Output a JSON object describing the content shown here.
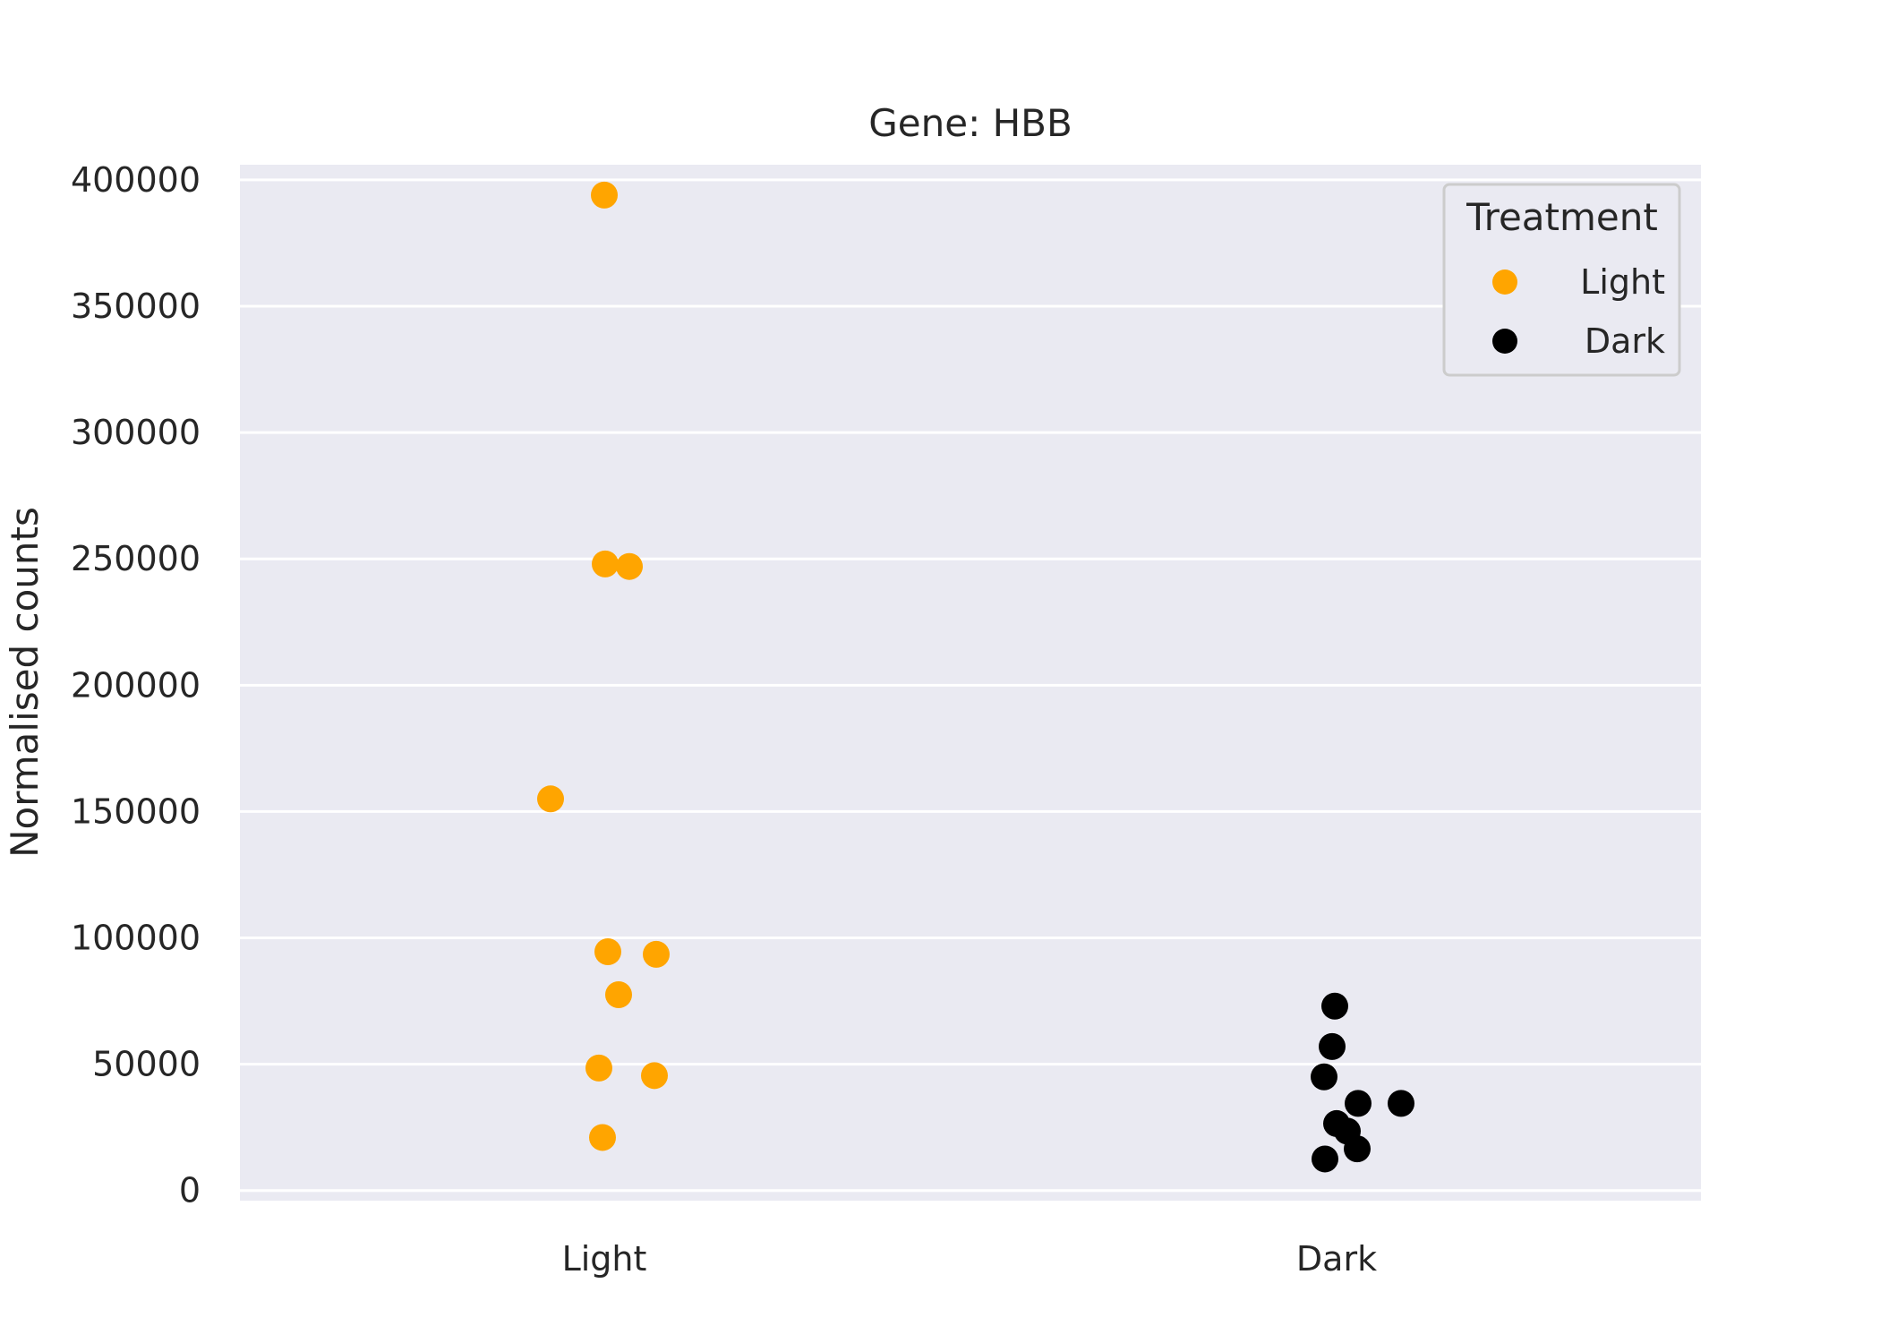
{
  "chart_data": {
    "type": "scatter",
    "title": "Gene: HBB",
    "xlabel": "",
    "ylabel": "Normalised counts",
    "categories": [
      "Light",
      "Dark"
    ],
    "ylim": [
      -4000,
      406000
    ],
    "yticks": [
      0,
      50000,
      100000,
      150000,
      200000,
      250000,
      300000,
      350000,
      400000
    ],
    "grid": true,
    "legend": {
      "title": "Treatment",
      "placement": "top-right"
    },
    "colors": {
      "plot_background": "#eaeaf2",
      "grid": "#ffffff",
      "Light": "#ffa500",
      "Dark": "#000000"
    },
    "series": [
      {
        "name": "Light",
        "category": "Light",
        "color": "#ffa500",
        "values": [
          394000,
          248000,
          247000,
          155000,
          94500,
          93500,
          77500,
          48500,
          45500,
          21000
        ]
      },
      {
        "name": "Dark",
        "category": "Dark",
        "color": "#000000",
        "values": [
          73000,
          57000,
          45000,
          34500,
          34500,
          26500,
          23500,
          16500,
          12500
        ]
      }
    ]
  }
}
